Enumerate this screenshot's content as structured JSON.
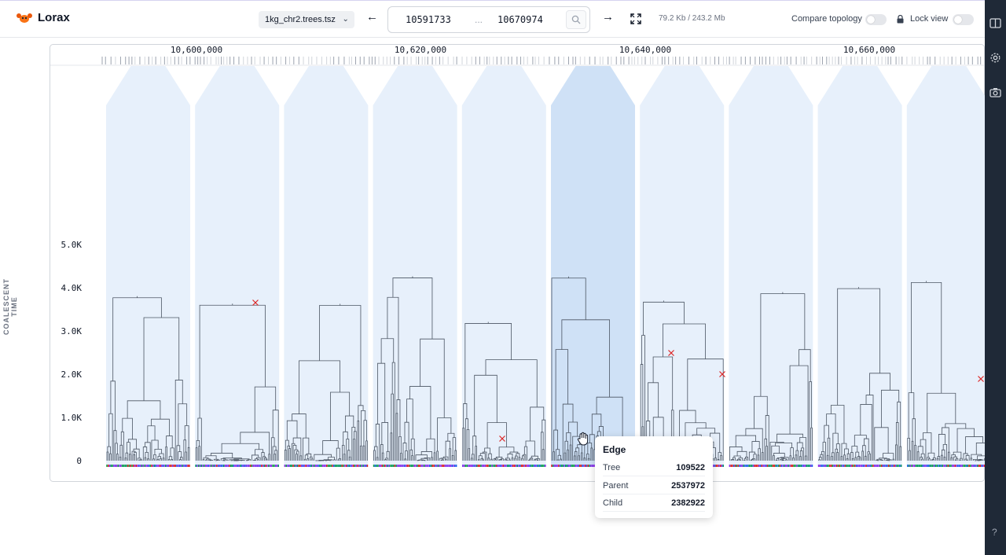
{
  "app": {
    "title": "Lorax"
  },
  "header": {
    "file_name": "1kg_chr2.trees.tsz",
    "range_start": "10591733",
    "range_separator": "...",
    "range_end": "10670974",
    "memory": "79.2 Kb / 243.2 Mb",
    "compare_topology_label": "Compare topology",
    "compare_topology_on": false,
    "lock_view_label": "Lock view",
    "lock_view_on": false,
    "icons": [
      "logo-icon",
      "arrow-left-icon",
      "search-icon",
      "arrow-right-icon",
      "fullscreen-icon",
      "lock-icon"
    ]
  },
  "sidebar": {
    "icons": [
      "columns-icon",
      "gear-icon",
      "camera-icon"
    ],
    "help_label": "?"
  },
  "genome_axis": {
    "ticks": [
      "10,600,000",
      "10,620,000",
      "10,640,000",
      "10,660,000"
    ]
  },
  "y_axis": {
    "title": "COALESCENT TIME",
    "ticks": [
      "5.0K",
      "4.0K",
      "3.0K",
      "2.0K",
      "1.0K",
      "0"
    ]
  },
  "trees": {
    "count": 10,
    "highlighted_index": 5
  },
  "tooltip": {
    "title": "Edge",
    "rows": [
      {
        "label": "Tree",
        "value": "109522"
      },
      {
        "label": "Parent",
        "value": "2537972"
      },
      {
        "label": "Child",
        "value": "2382922"
      }
    ]
  },
  "colors": {
    "panel": "#e7f0fb",
    "panel_highlight": "#cfe1f6",
    "edge": "#4b5563",
    "mutation": "#dc2626",
    "rail": "#1f2937"
  }
}
